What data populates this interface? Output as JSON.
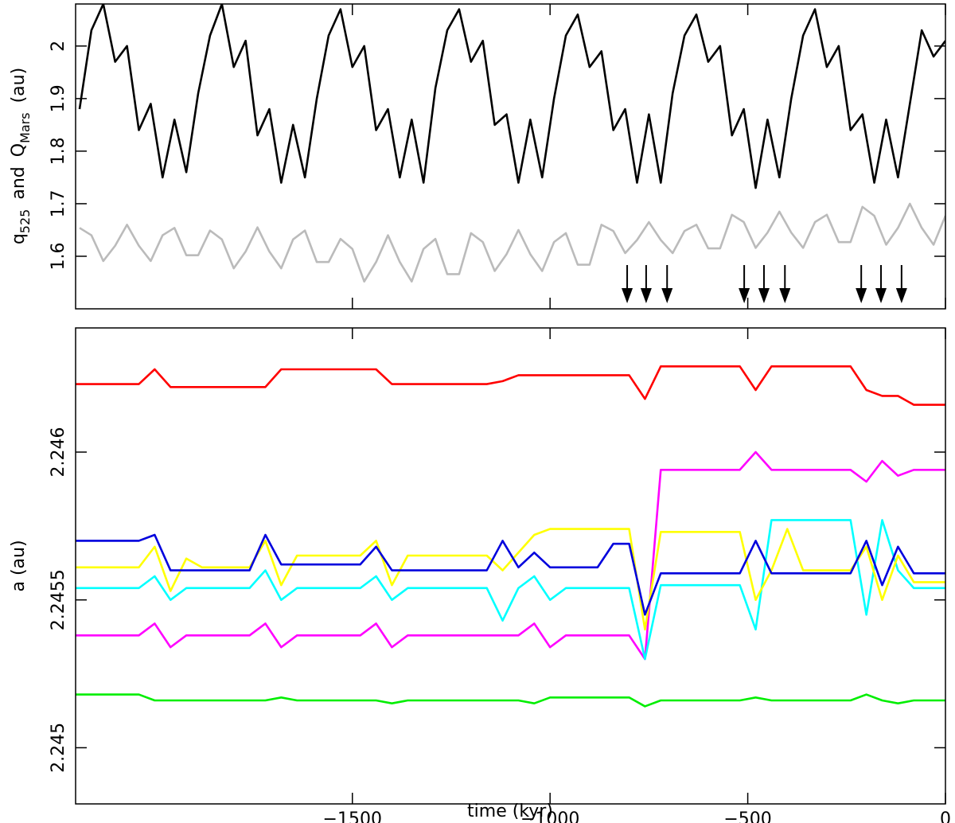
{
  "chart_data": [
    {
      "type": "line",
      "ylabel": [
        "q",
        "525",
        "and",
        "Q",
        "Mars",
        "(au)"
      ],
      "x": [
        -2190,
        -2160,
        -2130,
        -2100,
        -2070,
        -2040,
        -2010,
        -1980,
        -1950,
        -1920,
        -1890,
        -1860,
        -1830,
        -1800,
        -1770,
        -1740,
        -1710,
        -1680,
        -1650,
        -1620,
        -1590,
        -1560,
        -1530,
        -1500,
        -1470,
        -1440,
        -1410,
        -1380,
        -1350,
        -1320,
        -1290,
        -1260,
        -1230,
        -1200,
        -1170,
        -1140,
        -1110,
        -1080,
        -1050,
        -1020,
        -990,
        -960,
        -930,
        -900,
        -870,
        -840,
        -810,
        -780,
        -750,
        -720,
        -690,
        -660,
        -630,
        -600,
        -570,
        -540,
        -510,
        -480,
        -450,
        -420,
        -390,
        -360,
        -330,
        -300,
        -270,
        -240,
        -210,
        -180,
        -150,
        -120,
        -90,
        -60,
        -30,
        0
      ],
      "series": [
        {
          "color": "#000000",
          "values": [
            1.88,
            2.03,
            2.08,
            1.97,
            2.0,
            1.84,
            1.89,
            1.75,
            1.86,
            1.76,
            1.91,
            2.02,
            2.08,
            1.96,
            2.01,
            1.83,
            1.88,
            1.74,
            1.85,
            1.75,
            1.9,
            2.02,
            2.07,
            1.96,
            2.0,
            1.84,
            1.88,
            1.75,
            1.86,
            1.74,
            1.92,
            2.03,
            2.07,
            1.97,
            2.01,
            1.85,
            1.87,
            1.74,
            1.86,
            1.75,
            1.9,
            2.02,
            2.06,
            1.96,
            1.99,
            1.84,
            1.88,
            1.74,
            1.87,
            1.74,
            1.91,
            2.02,
            2.06,
            1.97,
            2.0,
            1.83,
            1.88,
            1.73,
            1.86,
            1.75,
            1.9,
            2.02,
            2.07,
            1.96,
            2.0,
            1.84,
            1.87,
            1.74,
            1.86,
            1.75,
            1.89,
            2.03,
            1.98,
            2.01
          ]
        },
        {
          "color": "#bbbbbb",
          "values": [
            1.654,
            1.64,
            1.591,
            1.62,
            1.66,
            1.62,
            1.591,
            1.64,
            1.654,
            1.602,
            1.602,
            1.649,
            1.632,
            1.577,
            1.609,
            1.655,
            1.609,
            1.577,
            1.632,
            1.649,
            1.589,
            1.589,
            1.633,
            1.614,
            1.552,
            1.589,
            1.64,
            1.589,
            1.552,
            1.614,
            1.633,
            1.566,
            1.566,
            1.644,
            1.627,
            1.572,
            1.604,
            1.65,
            1.604,
            1.572,
            1.627,
            1.644,
            1.584,
            1.584,
            1.66,
            1.648,
            1.606,
            1.631,
            1.665,
            1.631,
            1.606,
            1.648,
            1.66,
            1.615,
            1.615,
            1.679,
            1.665,
            1.616,
            1.645,
            1.685,
            1.645,
            1.616,
            1.665,
            1.679,
            1.627,
            1.627,
            1.694,
            1.677,
            1.622,
            1.654,
            1.7,
            1.654,
            1.622,
            1.677
          ]
        }
      ],
      "arrows": [
        -805,
        -757,
        -704,
        -509,
        -459,
        -406,
        -213,
        -163,
        -111
      ],
      "xlim": [
        -2200,
        0
      ],
      "ylim": [
        1.5,
        2.08
      ],
      "xticks": [
        -1500,
        -1000,
        -500,
        0
      ],
      "yticks": [
        1.6,
        1.7,
        1.8,
        1.9,
        2
      ]
    },
    {
      "type": "line",
      "xlabel": "time (kyr)",
      "ylabel": "a (au)",
      "x": [
        -2200,
        -2160,
        -2120,
        -2080,
        -2040,
        -2000,
        -1960,
        -1920,
        -1880,
        -1840,
        -1800,
        -1760,
        -1720,
        -1680,
        -1640,
        -1600,
        -1560,
        -1520,
        -1480,
        -1440,
        -1400,
        -1360,
        -1320,
        -1280,
        -1240,
        -1200,
        -1160,
        -1120,
        -1080,
        -1040,
        -1000,
        -960,
        -920,
        -880,
        -840,
        -800,
        -760,
        -720,
        -680,
        -640,
        -600,
        -560,
        -520,
        -480,
        -440,
        -400,
        -360,
        -320,
        -280,
        -240,
        -200,
        -160,
        -120,
        -80,
        -40,
        0
      ],
      "series": [
        {
          "color": "#ff0000",
          "values": [
            2.24623,
            2.24623,
            2.24623,
            2.24623,
            2.24623,
            2.24628,
            2.24622,
            2.24622,
            2.24622,
            2.24622,
            2.24622,
            2.24622,
            2.24622,
            2.24628,
            2.24628,
            2.24628,
            2.24628,
            2.24628,
            2.24628,
            2.24628,
            2.24623,
            2.24623,
            2.24623,
            2.24623,
            2.24623,
            2.24623,
            2.24623,
            2.24624,
            2.24626,
            2.24626,
            2.24626,
            2.24626,
            2.24626,
            2.24626,
            2.24626,
            2.24626,
            2.24618,
            2.24629,
            2.24629,
            2.24629,
            2.24629,
            2.24629,
            2.24629,
            2.24621,
            2.24629,
            2.24629,
            2.24629,
            2.24629,
            2.24629,
            2.24629,
            2.24621,
            2.24619,
            2.24619,
            2.24616,
            2.24616,
            2.24616
          ]
        },
        {
          "color": "#00ee00",
          "values": [
            2.24518,
            2.24518,
            2.24518,
            2.24518,
            2.24518,
            2.24516,
            2.24516,
            2.24516,
            2.24516,
            2.24516,
            2.24516,
            2.24516,
            2.24516,
            2.24517,
            2.24516,
            2.24516,
            2.24516,
            2.24516,
            2.24516,
            2.24516,
            2.24515,
            2.24516,
            2.24516,
            2.24516,
            2.24516,
            2.24516,
            2.24516,
            2.24516,
            2.24516,
            2.24515,
            2.24517,
            2.24517,
            2.24517,
            2.24517,
            2.24517,
            2.24517,
            2.24514,
            2.24516,
            2.24516,
            2.24516,
            2.24516,
            2.24516,
            2.24516,
            2.24517,
            2.24516,
            2.24516,
            2.24516,
            2.24516,
            2.24516,
            2.24516,
            2.24518,
            2.24516,
            2.24515,
            2.24516,
            2.24516,
            2.24516
          ]
        },
        {
          "color": "#ff00ff",
          "values": [
            2.24538,
            2.24538,
            2.24538,
            2.24538,
            2.24538,
            2.24542,
            2.24534,
            2.24538,
            2.24538,
            2.24538,
            2.24538,
            2.24538,
            2.24542,
            2.24534,
            2.24538,
            2.24538,
            2.24538,
            2.24538,
            2.24538,
            2.24542,
            2.24534,
            2.24538,
            2.24538,
            2.24538,
            2.24538,
            2.24538,
            2.24538,
            2.24538,
            2.24538,
            2.24542,
            2.24534,
            2.24538,
            2.24538,
            2.24538,
            2.24538,
            2.24538,
            2.2453,
            2.24594,
            2.24594,
            2.24594,
            2.24594,
            2.24594,
            2.24594,
            2.246,
            2.24594,
            2.24594,
            2.24594,
            2.24594,
            2.24594,
            2.24594,
            2.2459,
            2.24597,
            2.24592,
            2.24594,
            2.24594,
            2.24594
          ]
        },
        {
          "color": "#00ffff",
          "values": [
            2.24554,
            2.24554,
            2.24554,
            2.24554,
            2.24554,
            2.24558,
            2.2455,
            2.24554,
            2.24554,
            2.24554,
            2.24554,
            2.24554,
            2.2456,
            2.2455,
            2.24554,
            2.24554,
            2.24554,
            2.24554,
            2.24554,
            2.24558,
            2.2455,
            2.24554,
            2.24554,
            2.24554,
            2.24554,
            2.24554,
            2.24554,
            2.24543,
            2.24554,
            2.24558,
            2.2455,
            2.24554,
            2.24554,
            2.24554,
            2.24554,
            2.24554,
            2.2453,
            2.24555,
            2.24555,
            2.24555,
            2.24555,
            2.24555,
            2.24555,
            2.2454,
            2.24577,
            2.24577,
            2.24577,
            2.24577,
            2.24577,
            2.24577,
            2.24545,
            2.24577,
            2.2456,
            2.24554,
            2.24554,
            2.24554
          ]
        },
        {
          "color": "#ffff00",
          "values": [
            2.24561,
            2.24561,
            2.24561,
            2.24561,
            2.24561,
            2.24568,
            2.24553,
            2.24564,
            2.24561,
            2.24561,
            2.24561,
            2.24561,
            2.2457,
            2.24555,
            2.24565,
            2.24565,
            2.24565,
            2.24565,
            2.24565,
            2.2457,
            2.24555,
            2.24565,
            2.24565,
            2.24565,
            2.24565,
            2.24565,
            2.24565,
            2.2456,
            2.24566,
            2.24572,
            2.24574,
            2.24574,
            2.24574,
            2.24574,
            2.24574,
            2.24574,
            2.2454,
            2.24573,
            2.24573,
            2.24573,
            2.24573,
            2.24573,
            2.24573,
            2.2455,
            2.2456,
            2.24574,
            2.2456,
            2.2456,
            2.2456,
            2.2456,
            2.24568,
            2.2455,
            2.24565,
            2.24556,
            2.24556,
            2.24556
          ]
        },
        {
          "color": "#0000dd",
          "values": [
            2.2457,
            2.2457,
            2.2457,
            2.2457,
            2.2457,
            2.24572,
            2.2456,
            2.2456,
            2.2456,
            2.2456,
            2.2456,
            2.2456,
            2.24572,
            2.24562,
            2.24562,
            2.24562,
            2.24562,
            2.24562,
            2.24562,
            2.24568,
            2.2456,
            2.2456,
            2.2456,
            2.2456,
            2.2456,
            2.2456,
            2.2456,
            2.2457,
            2.24561,
            2.24566,
            2.24561,
            2.24561,
            2.24561,
            2.24561,
            2.24569,
            2.24569,
            2.24545,
            2.24559,
            2.24559,
            2.24559,
            2.24559,
            2.24559,
            2.24559,
            2.2457,
            2.24559,
            2.24559,
            2.24559,
            2.24559,
            2.24559,
            2.24559,
            2.2457,
            2.24555,
            2.24568,
            2.24559,
            2.24559,
            2.24559
          ]
        }
      ],
      "xlim": [
        -2200,
        0
      ],
      "ylim": [
        2.24481,
        2.24642
      ],
      "xticks": [
        {
          "value": -1500,
          "label": "−1500"
        },
        {
          "value": -1000,
          "label": "−1000"
        },
        {
          "value": -500,
          "label": "−500"
        },
        0
      ],
      "yticks": [
        2.245,
        2.2455,
        2.246
      ]
    }
  ]
}
